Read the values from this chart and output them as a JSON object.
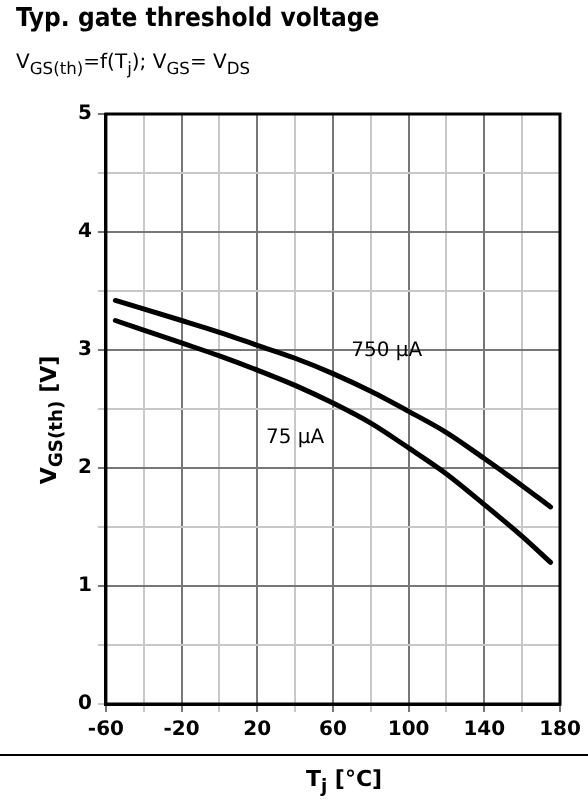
{
  "chart_data": {
    "type": "line",
    "title": "Typ. gate threshold voltage",
    "subtitle": "V$_{GS(th)}$=f(T$_{j}$); V$_{GS}$= V$_{DS}$",
    "xlabel": "T$_{j}$ [°C]",
    "ylabel": "V$_{GS(th)}$ [V]",
    "series": [
      {
        "name": "750 µA",
        "color": "#000000",
        "x": [
          -55,
          -20,
          0,
          20,
          40,
          60,
          80,
          100,
          120,
          140,
          160,
          175
        ],
        "values": [
          3.42,
          3.25,
          3.15,
          3.04,
          2.93,
          2.8,
          2.65,
          2.48,
          2.3,
          2.08,
          1.85,
          1.67
        ]
      },
      {
        "name": "75 µA",
        "color": "#000000",
        "x": [
          -55,
          -20,
          0,
          20,
          40,
          60,
          80,
          100,
          120,
          140,
          160,
          175
        ],
        "values": [
          3.25,
          3.06,
          2.95,
          2.83,
          2.7,
          2.55,
          2.38,
          2.17,
          1.95,
          1.69,
          1.42,
          1.2
        ]
      }
    ],
    "xlim": [
      -60,
      180
    ],
    "xticks": [
      -60,
      {
        "value": -40,
        "label": null
      },
      -20,
      {
        "value": 0,
        "label": null
      },
      20,
      {
        "value": 40,
        "label": null
      },
      60,
      {
        "value": 80,
        "label": null
      },
      100,
      {
        "value": 120,
        "label": null
      },
      140,
      {
        "value": 160,
        "label": null
      },
      180
    ],
    "ylim": [
      0,
      5
    ],
    "yticks": [
      0,
      {
        "value": 0.5,
        "label": null
      },
      1,
      {
        "value": 1.5,
        "label": null
      },
      2,
      {
        "value": 2.5,
        "label": null
      },
      3,
      {
        "value": 3.5,
        "label": null
      },
      4,
      {
        "value": 4.5,
        "label": null
      },
      5
    ],
    "grid": true,
    "legend": false,
    "marker": "none",
    "line_style": "solid"
  }
}
